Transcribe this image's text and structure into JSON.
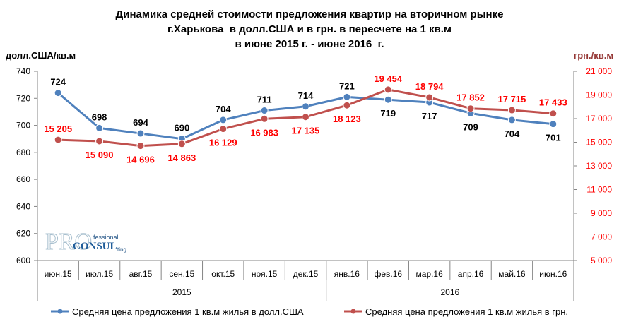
{
  "chart_data": {
    "type": "line",
    "title": [
      "Динамика средней стоимости предложения квартир на вторичном рынке",
      "г.Харькова  в долл.США и в грн. в пересчете на 1 кв.м",
      "в июне 2015 г. - июне 2016  г."
    ],
    "ylabel": "долл.США/кв.м",
    "y2label": "грн./кв.м",
    "ylim": [
      600,
      740
    ],
    "y2lim": [
      5000,
      21000
    ],
    "yticks": [
      "600",
      "620",
      "640",
      "660",
      "680",
      "700",
      "720",
      "740"
    ],
    "y2ticks": [
      "5 000",
      "7 000",
      "9 000",
      "11 000",
      "13 000",
      "15 000",
      "17 000",
      "19 000",
      "21 000"
    ],
    "categories": [
      "июн.15",
      "июл.15",
      "авг.15",
      "сен.15",
      "окт.15",
      "ноя.15",
      "дек.15",
      "янв.16",
      "фев.16",
      "мар.16",
      "апр.16",
      "май.16",
      "июн.16"
    ],
    "year_groups": [
      {
        "label": "2015",
        "count": 7
      },
      {
        "label": "2016",
        "count": 6
      }
    ],
    "grid": false,
    "legend_position": "bottom",
    "series": [
      {
        "name": "Средняя цена предложения 1 кв.м жилья в долл.США",
        "axis": "left",
        "color": "#4F81BD",
        "label_color": "#000000",
        "values": [
          724,
          698,
          694,
          690,
          704,
          711,
          714,
          721,
          719,
          717,
          709,
          704,
          701
        ],
        "labels": [
          "724",
          "698",
          "694",
          "690",
          "704",
          "711",
          "714",
          "721",
          "719",
          "717",
          "709",
          "704",
          "701"
        ]
      },
      {
        "name": "Средняя цена предложения 1 кв.м жилья в грн.",
        "axis": "right",
        "color": "#C0504D",
        "label_color": "#FF0000",
        "values": [
          15205,
          15090,
          14696,
          14863,
          16129,
          16983,
          17135,
          18123,
          19454,
          18794,
          17852,
          17715,
          17433
        ],
        "labels": [
          "15 205",
          "15 090",
          "14 696",
          "14 863",
          "16 129",
          "16 983",
          "17 135",
          "18 123",
          "19 454",
          "18 794",
          "17 852",
          "17 715",
          "17 433"
        ]
      }
    ],
    "colors": {
      "right_axis_title": "#953735",
      "right_ticks": "#FF0000"
    }
  },
  "logo": {
    "text": "PRO fessional CONSUL ting"
  }
}
